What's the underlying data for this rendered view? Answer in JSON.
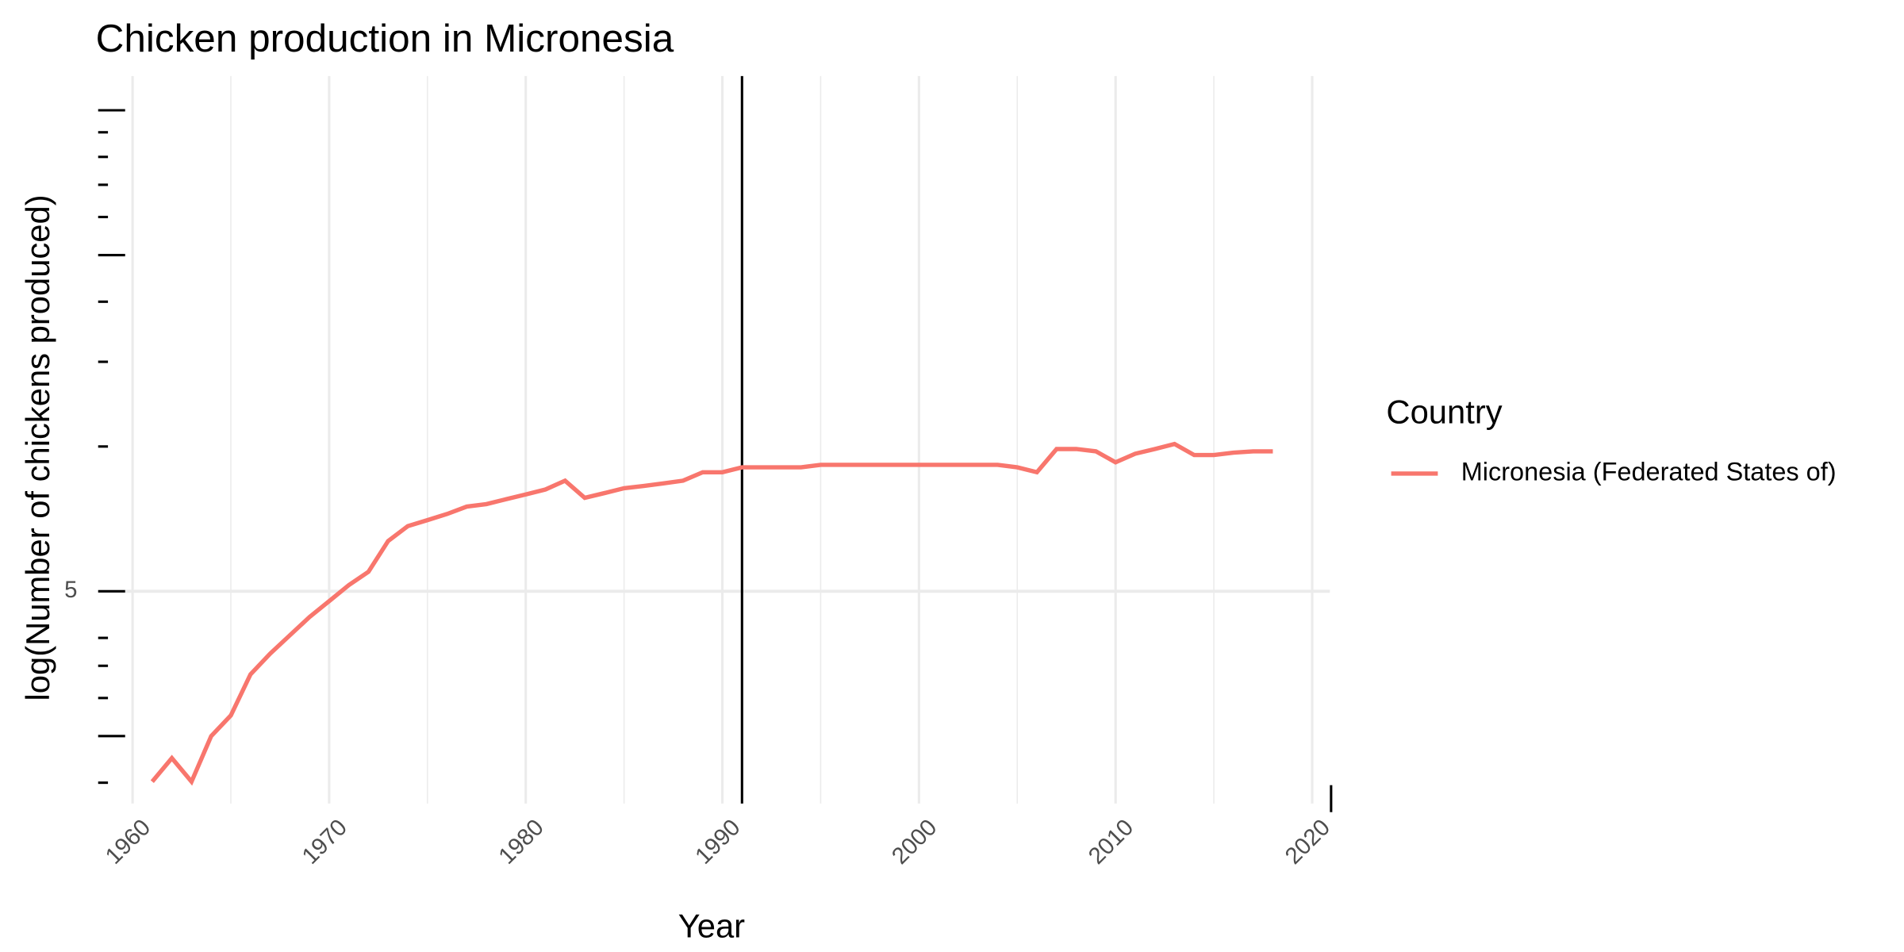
{
  "chart_data": {
    "type": "line",
    "title": "Chicken production in Micronesia",
    "x_label": "Year",
    "y_label": "log(Number of chickens produced)",
    "log_y": true,
    "x": [
      1961,
      1962,
      1963,
      1964,
      1965,
      1966,
      1967,
      1968,
      1969,
      1970,
      1971,
      1972,
      1973,
      1974,
      1975,
      1976,
      1977,
      1978,
      1979,
      1980,
      1981,
      1982,
      1983,
      1984,
      1985,
      1986,
      1987,
      1988,
      1989,
      1990,
      1991,
      1992,
      1993,
      1994,
      1995,
      1996,
      1997,
      1998,
      1999,
      2000,
      2001,
      2002,
      2003,
      2004,
      2005,
      2006,
      2007,
      2008,
      2009,
      2010,
      2011,
      2012,
      2013,
      2014,
      2015,
      2016,
      2017,
      2018
    ],
    "series": [
      {
        "name": "Micronesia (Federated States of)",
        "color": "#F8766D",
        "values": [
          2.01,
          2.25,
          2.01,
          2.5,
          2.76,
          3.36,
          3.71,
          4.05,
          4.42,
          4.77,
          5.15,
          5.49,
          6.36,
          6.83,
          7.03,
          7.24,
          7.5,
          7.59,
          7.77,
          7.95,
          8.14,
          8.49,
          7.82,
          8.0,
          8.19,
          8.28,
          8.38,
          8.49,
          8.84,
          8.84,
          9.05,
          9.05,
          9.05,
          9.05,
          9.16,
          9.16,
          9.16,
          9.16,
          9.16,
          9.16,
          9.16,
          9.16,
          9.16,
          9.16,
          9.05,
          8.84,
          9.88,
          9.88,
          9.77,
          9.27,
          9.66,
          9.88,
          10.12,
          9.6,
          9.6,
          9.71,
          9.77,
          9.77
        ]
      }
    ],
    "legend_title": "Country",
    "vline": 1991,
    "xlim": [
      1958.25,
      2020.9
    ],
    "xticks": [
      1960,
      1970,
      1980,
      1990,
      2000,
      2010,
      2020
    ],
    "x_minor_grid": [
      1965,
      1975,
      1985,
      1995,
      2005,
      2015
    ],
    "ylim": [
      1.81,
      58.9
    ],
    "yticks": [
      5
    ],
    "y_long_ticks": [
      50,
      25,
      2.5
    ],
    "y_short_ticks": [
      45,
      40,
      35,
      30,
      20,
      15,
      10,
      4,
      3.5,
      3,
      2
    ],
    "grid": true
  }
}
